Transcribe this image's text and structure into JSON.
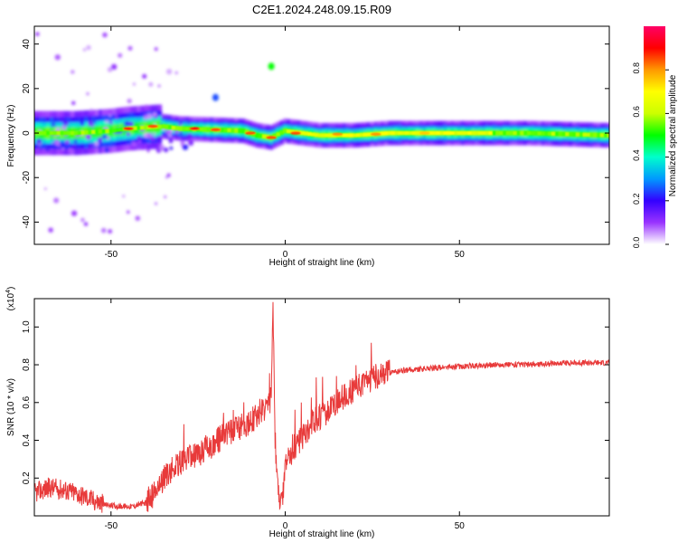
{
  "title": "C2E1.2024.248.09.15.R09",
  "chart_data": [
    {
      "type": "heatmap",
      "xlabel": "Height of straight line (km)",
      "ylabel": "Frequency (Hz)",
      "xlim": [
        -72,
        93
      ],
      "ylim": [
        -50,
        48
      ],
      "xticks": [
        -50,
        0,
        50
      ],
      "yticks": [
        -40,
        -20,
        0,
        20,
        40
      ],
      "colorbar": {
        "label": "Normalized spectral amplitude",
        "range": [
          0.0,
          1.0
        ],
        "ticks": [
          "0.0",
          "0.2",
          "0.4",
          "0.6",
          "0.8"
        ],
        "colors": [
          "#ffffff",
          "#9933ff",
          "#3300ff",
          "#0099ff",
          "#00ffcc",
          "#00ff00",
          "#ccff00",
          "#ffff00",
          "#ff9900",
          "#ff0000",
          "#ff0066"
        ]
      },
      "ridge": [
        [
          -72,
          0
        ],
        [
          -60,
          0
        ],
        [
          -50,
          1
        ],
        [
          -45,
          2
        ],
        [
          -40,
          2.5
        ],
        [
          -35,
          3
        ],
        [
          -30,
          2
        ],
        [
          -20,
          1.5
        ],
        [
          -12,
          1
        ],
        [
          -8,
          -1
        ],
        [
          -4,
          -2
        ],
        [
          0,
          1
        ],
        [
          5,
          0
        ],
        [
          10,
          -1
        ],
        [
          20,
          -1
        ],
        [
          30,
          0
        ],
        [
          50,
          0
        ],
        [
          70,
          0
        ],
        [
          93,
          -1
        ]
      ],
      "hotspots": [
        {
          "x": -45,
          "y": 2,
          "amplitude": 0.9
        },
        {
          "x": -38,
          "y": 3,
          "amplitude": 0.85
        },
        {
          "x": -26,
          "y": 2,
          "amplitude": 0.9
        },
        {
          "x": -20,
          "y": 1.5,
          "amplitude": 0.85
        },
        {
          "x": -10,
          "y": 0,
          "amplitude": 0.85
        },
        {
          "x": -4,
          "y": -2,
          "amplitude": 0.85
        },
        {
          "x": 3,
          "y": 0,
          "amplitude": 0.85
        },
        {
          "x": 15,
          "y": -0.5,
          "amplitude": 0.8
        },
        {
          "x": 26,
          "y": -0.5,
          "amplitude": 0.8
        },
        {
          "x": 40,
          "y": 0,
          "amplitude": 0.75
        },
        {
          "x": 47,
          "y": 0,
          "amplitude": 0.7
        }
      ],
      "isolated_features": [
        {
          "x": -4,
          "y": 30,
          "amplitude": 0.5
        },
        {
          "x": -20,
          "y": 16,
          "amplitude": 0.25
        }
      ]
    },
    {
      "type": "line",
      "xlabel": "Height of straight line (km)",
      "ylabel": "SNR (10 * v/v)",
      "exponent_label": "(x10",
      "exponent_power": "4",
      "exponent_close": ")",
      "xlim": [
        -72,
        93
      ],
      "ylim": [
        0,
        1.15
      ],
      "xticks": [
        -50,
        0,
        50
      ],
      "yticks": [
        0.2,
        0.4,
        0.6,
        0.8,
        1.0
      ],
      "series": [
        {
          "color": "#e83a3a",
          "x": [
            -72,
            -68,
            -64,
            -60,
            -56,
            -52,
            -48,
            -44,
            -40,
            -37,
            -34,
            -30,
            -26,
            -22,
            -18,
            -14,
            -10,
            -7,
            -5,
            -4,
            -3.5,
            -3,
            -2,
            -1,
            0,
            2,
            5,
            8,
            12,
            16,
            20,
            24,
            28,
            34,
            40,
            50,
            60,
            70,
            80,
            93
          ],
          "y": [
            0.12,
            0.15,
            0.14,
            0.12,
            0.09,
            0.06,
            0.05,
            0.05,
            0.07,
            0.13,
            0.22,
            0.28,
            0.32,
            0.36,
            0.42,
            0.46,
            0.5,
            0.55,
            0.58,
            0.62,
            1.15,
            0.45,
            0.1,
            0.05,
            0.25,
            0.35,
            0.42,
            0.5,
            0.55,
            0.62,
            0.67,
            0.72,
            0.75,
            0.77,
            0.78,
            0.79,
            0.8,
            0.8,
            0.81,
            0.81
          ]
        }
      ]
    }
  ]
}
